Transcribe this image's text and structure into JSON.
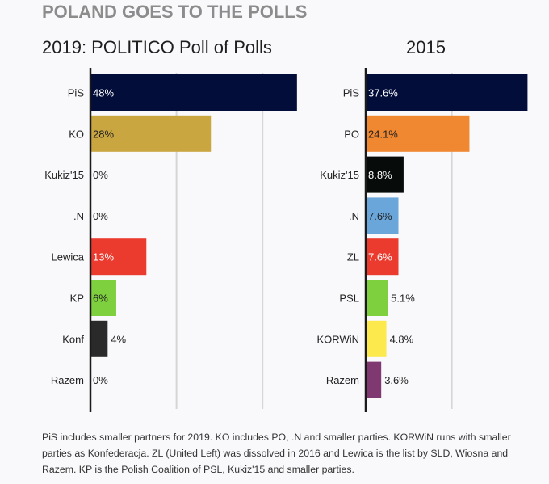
{
  "header": {
    "title": "POLAND GOES TO THE POLLS"
  },
  "chart_data": [
    {
      "type": "bar",
      "orientation": "horizontal",
      "title": "2019: POLITICO Poll of Polls",
      "categories": [
        "PiS",
        "KO",
        "Kukiz'15",
        ".N",
        "Lewica",
        "KP",
        "Konf",
        "Razem"
      ],
      "values": [
        48,
        28,
        0,
        0,
        13,
        6,
        4,
        0
      ],
      "labels": [
        "48%",
        "28%",
        "0%",
        "0%",
        "13%",
        "6%",
        "4%",
        "0%"
      ],
      "colors": [
        "#030d3a",
        "#c9a640",
        "#cccccc",
        "#cccccc",
        "#ea3b2e",
        "#7ed03f",
        "#2a2a2a",
        "#cccccc"
      ],
      "label_colors": [
        "#ffffff",
        "#222222",
        "#222222",
        "#222222",
        "#ffffff",
        "#222222",
        "#222222",
        "#222222"
      ],
      "label_inside": [
        true,
        true,
        true,
        true,
        true,
        true,
        false,
        true
      ],
      "xlim": [
        0,
        50
      ],
      "gridlines": [
        20,
        40
      ],
      "xlabel": "",
      "ylabel": ""
    },
    {
      "type": "bar",
      "orientation": "horizontal",
      "title": "2015",
      "categories": [
        "PiS",
        "PO",
        "Kukiz'15",
        ".N",
        "ZL",
        "PSL",
        "KORWiN",
        "Razem"
      ],
      "values": [
        37.6,
        24.1,
        8.8,
        7.6,
        7.6,
        5.1,
        4.8,
        3.6
      ],
      "labels": [
        "37.6%",
        "24.1%",
        "8.8%",
        "7.6%",
        "7.6%",
        "5.1%",
        "4.8%",
        "3.6%"
      ],
      "colors": [
        "#030d3a",
        "#f08731",
        "#070b0a",
        "#6aa6d9",
        "#ea3b2e",
        "#7ed03f",
        "#fbe94e",
        "#7f3870"
      ],
      "label_colors": [
        "#ffffff",
        "#222222",
        "#ffffff",
        "#222222",
        "#ffffff",
        "#222222",
        "#222222",
        "#222222"
      ],
      "label_inside": [
        true,
        true,
        true,
        true,
        true,
        false,
        false,
        false
      ],
      "xlim": [
        0,
        40
      ],
      "gridlines": [
        20
      ],
      "xlabel": "",
      "ylabel": ""
    }
  ],
  "footnote": "PiS includes smaller partners for 2019. KO includes PO, .N and smaller parties. KORWiN runs with smaller parties as Konfederacja. ZL (United Left) was dissolved in 2016 and Lewica is the list by SLD, Wiosna and Razem. KP is the Polish Coalition of PSL, Kukiz'15 and smaller parties."
}
